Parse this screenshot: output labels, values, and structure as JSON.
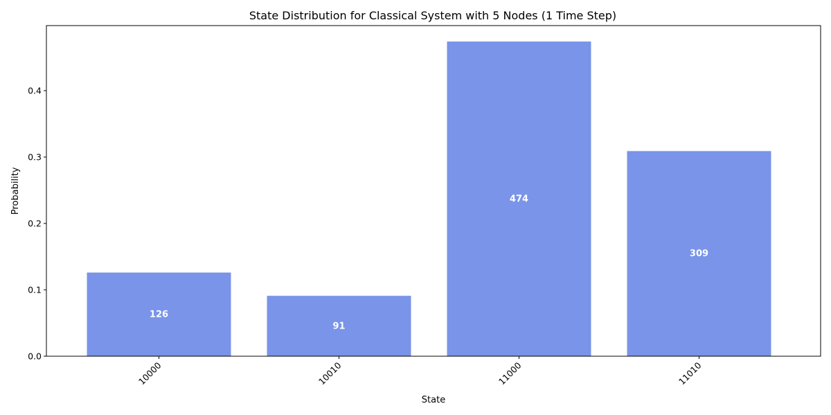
{
  "chart_data": {
    "type": "bar",
    "title": "State Distribution for Classical System with 5 Nodes (1 Time Step)",
    "xlabel": "State",
    "ylabel": "Probability",
    "categories": [
      "10000",
      "10010",
      "11000",
      "11010"
    ],
    "values": [
      0.126,
      0.091,
      0.474,
      0.309
    ],
    "data_labels": [
      "126",
      "91",
      "474",
      "309"
    ],
    "ylim": [
      0,
      0.498
    ],
    "yticks": [
      0.0,
      0.1,
      0.2,
      0.3,
      0.4
    ],
    "ytick_labels": [
      "0.0",
      "0.1",
      "0.2",
      "0.3",
      "0.4"
    ],
    "xtick_rotation": 45,
    "bar_color": "#7994e8",
    "grid": false
  }
}
